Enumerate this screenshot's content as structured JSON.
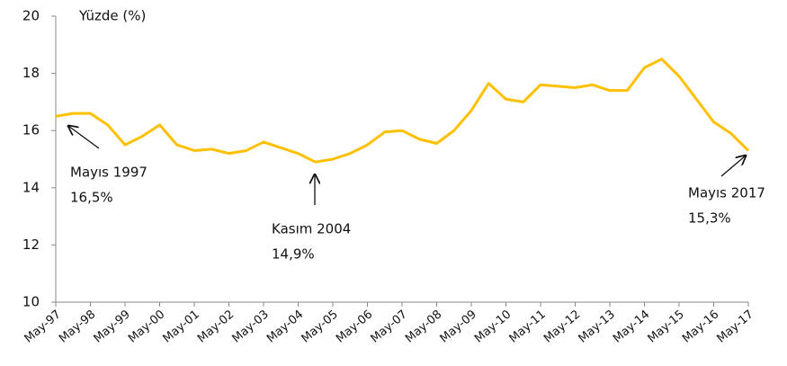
{
  "chart_data": {
    "type": "line",
    "axis_label": "Yüzde (%)",
    "categories": [
      "May-97",
      null,
      "May-98",
      null,
      "May-99",
      null,
      "May-00",
      null,
      "May-01",
      null,
      "May-02",
      null,
      "May-03",
      null,
      "May-04",
      null,
      "May-05",
      null,
      "May-06",
      null,
      "May-07",
      null,
      "May-08",
      null,
      "May-09",
      null,
      "May-10",
      null,
      "May-11",
      null,
      "May-12",
      null,
      "May-13",
      null,
      "May-14",
      null,
      "May-15",
      null,
      "May-16",
      null,
      "May-17"
    ],
    "series": [
      {
        "color": "#FFC000",
        "values": [
          16.5,
          16.6,
          16.6,
          16.2,
          15.5,
          15.8,
          16.2,
          15.5,
          15.3,
          15.35,
          15.2,
          15.3,
          15.6,
          15.4,
          15.2,
          14.9,
          15.0,
          15.2,
          15.5,
          15.95,
          16.0,
          15.7,
          15.55,
          16.0,
          16.7,
          17.65,
          17.1,
          17.0,
          17.6,
          17.55,
          17.5,
          17.6,
          17.4,
          17.4,
          18.2,
          18.5,
          17.9,
          17.1,
          16.3,
          15.9,
          15.3
        ]
      }
    ],
    "ylim": [
      10,
      20
    ],
    "yticks": [
      10,
      12,
      14,
      16,
      18,
      20
    ],
    "annotations": [
      {
        "lines": [
          "Mayıs 1997",
          "16,5%"
        ]
      },
      {
        "lines": [
          "Kasım 2004",
          "14,9%"
        ]
      },
      {
        "lines": [
          "Mayıs 2017",
          "15,3%"
        ]
      }
    ]
  }
}
